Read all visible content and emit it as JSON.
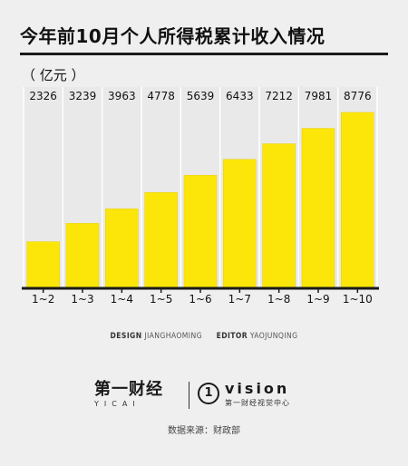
{
  "title": "今年前10月个人所得税累计收入情况",
  "unit_label": "（ 亿元 ）",
  "colors": {
    "bar": "#fce60a",
    "bar_edge": "#e8d000",
    "grid": "#ffffff",
    "axis": "#1a1a1a",
    "text": "#111111"
  },
  "chart_data": {
    "type": "bar",
    "categories": [
      "1~2",
      "1~3",
      "1~4",
      "1~5",
      "1~6",
      "1~7",
      "1~8",
      "1~9",
      "1~10"
    ],
    "values": [
      2326,
      3239,
      3963,
      4778,
      5639,
      6433,
      7212,
      7981,
      8776
    ],
    "ylim": [
      0,
      8776
    ],
    "grid": "vertical",
    "data_labels": "top"
  },
  "credits": {
    "design_label": "DESIGN",
    "design_name": "JIANGHAOMING",
    "editor_label": "EDITOR",
    "editor_name": "YAOJUNQING"
  },
  "logos": {
    "yicai_cn": "第一财经",
    "yicai_en": "YICAI",
    "vision_mark": "1",
    "vision_word": "vision",
    "vision_cn": "第一财经视觉中心"
  },
  "source": "数据来源：财政部"
}
